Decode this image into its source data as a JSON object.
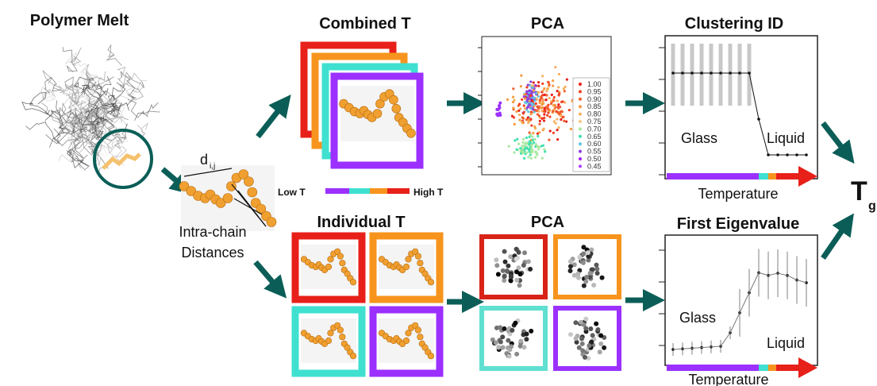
{
  "polymer_melt": {
    "title": "Polymer Melt"
  },
  "distances": {
    "symbol": "d",
    "subscript": "i,j",
    "label_line1": "Intra-chain",
    "label_line2": "Distances"
  },
  "temperature_scale": {
    "low": "Low T",
    "high": "High T"
  },
  "combined": {
    "title": "Combined T",
    "pca_title": "PCA",
    "legend": [
      "1.00",
      "0.95",
      "0.90",
      "0.85",
      "0.80",
      "0.75",
      "0.70",
      "0.65",
      "0.60",
      "0.55",
      "0.50",
      "0.45"
    ],
    "clustering": {
      "title": "Clustering ID",
      "glass": "Glass",
      "liquid": "Liquid",
      "x_label": "Temperature"
    }
  },
  "individual": {
    "title": "Individual T",
    "pca_title": "PCA",
    "eigen": {
      "title": "First Eigenvalue",
      "glass": "Glass",
      "liquid": "Liquid",
      "x_label": "Temperature"
    }
  },
  "result": {
    "symbol": "T",
    "subscript": "g"
  }
}
